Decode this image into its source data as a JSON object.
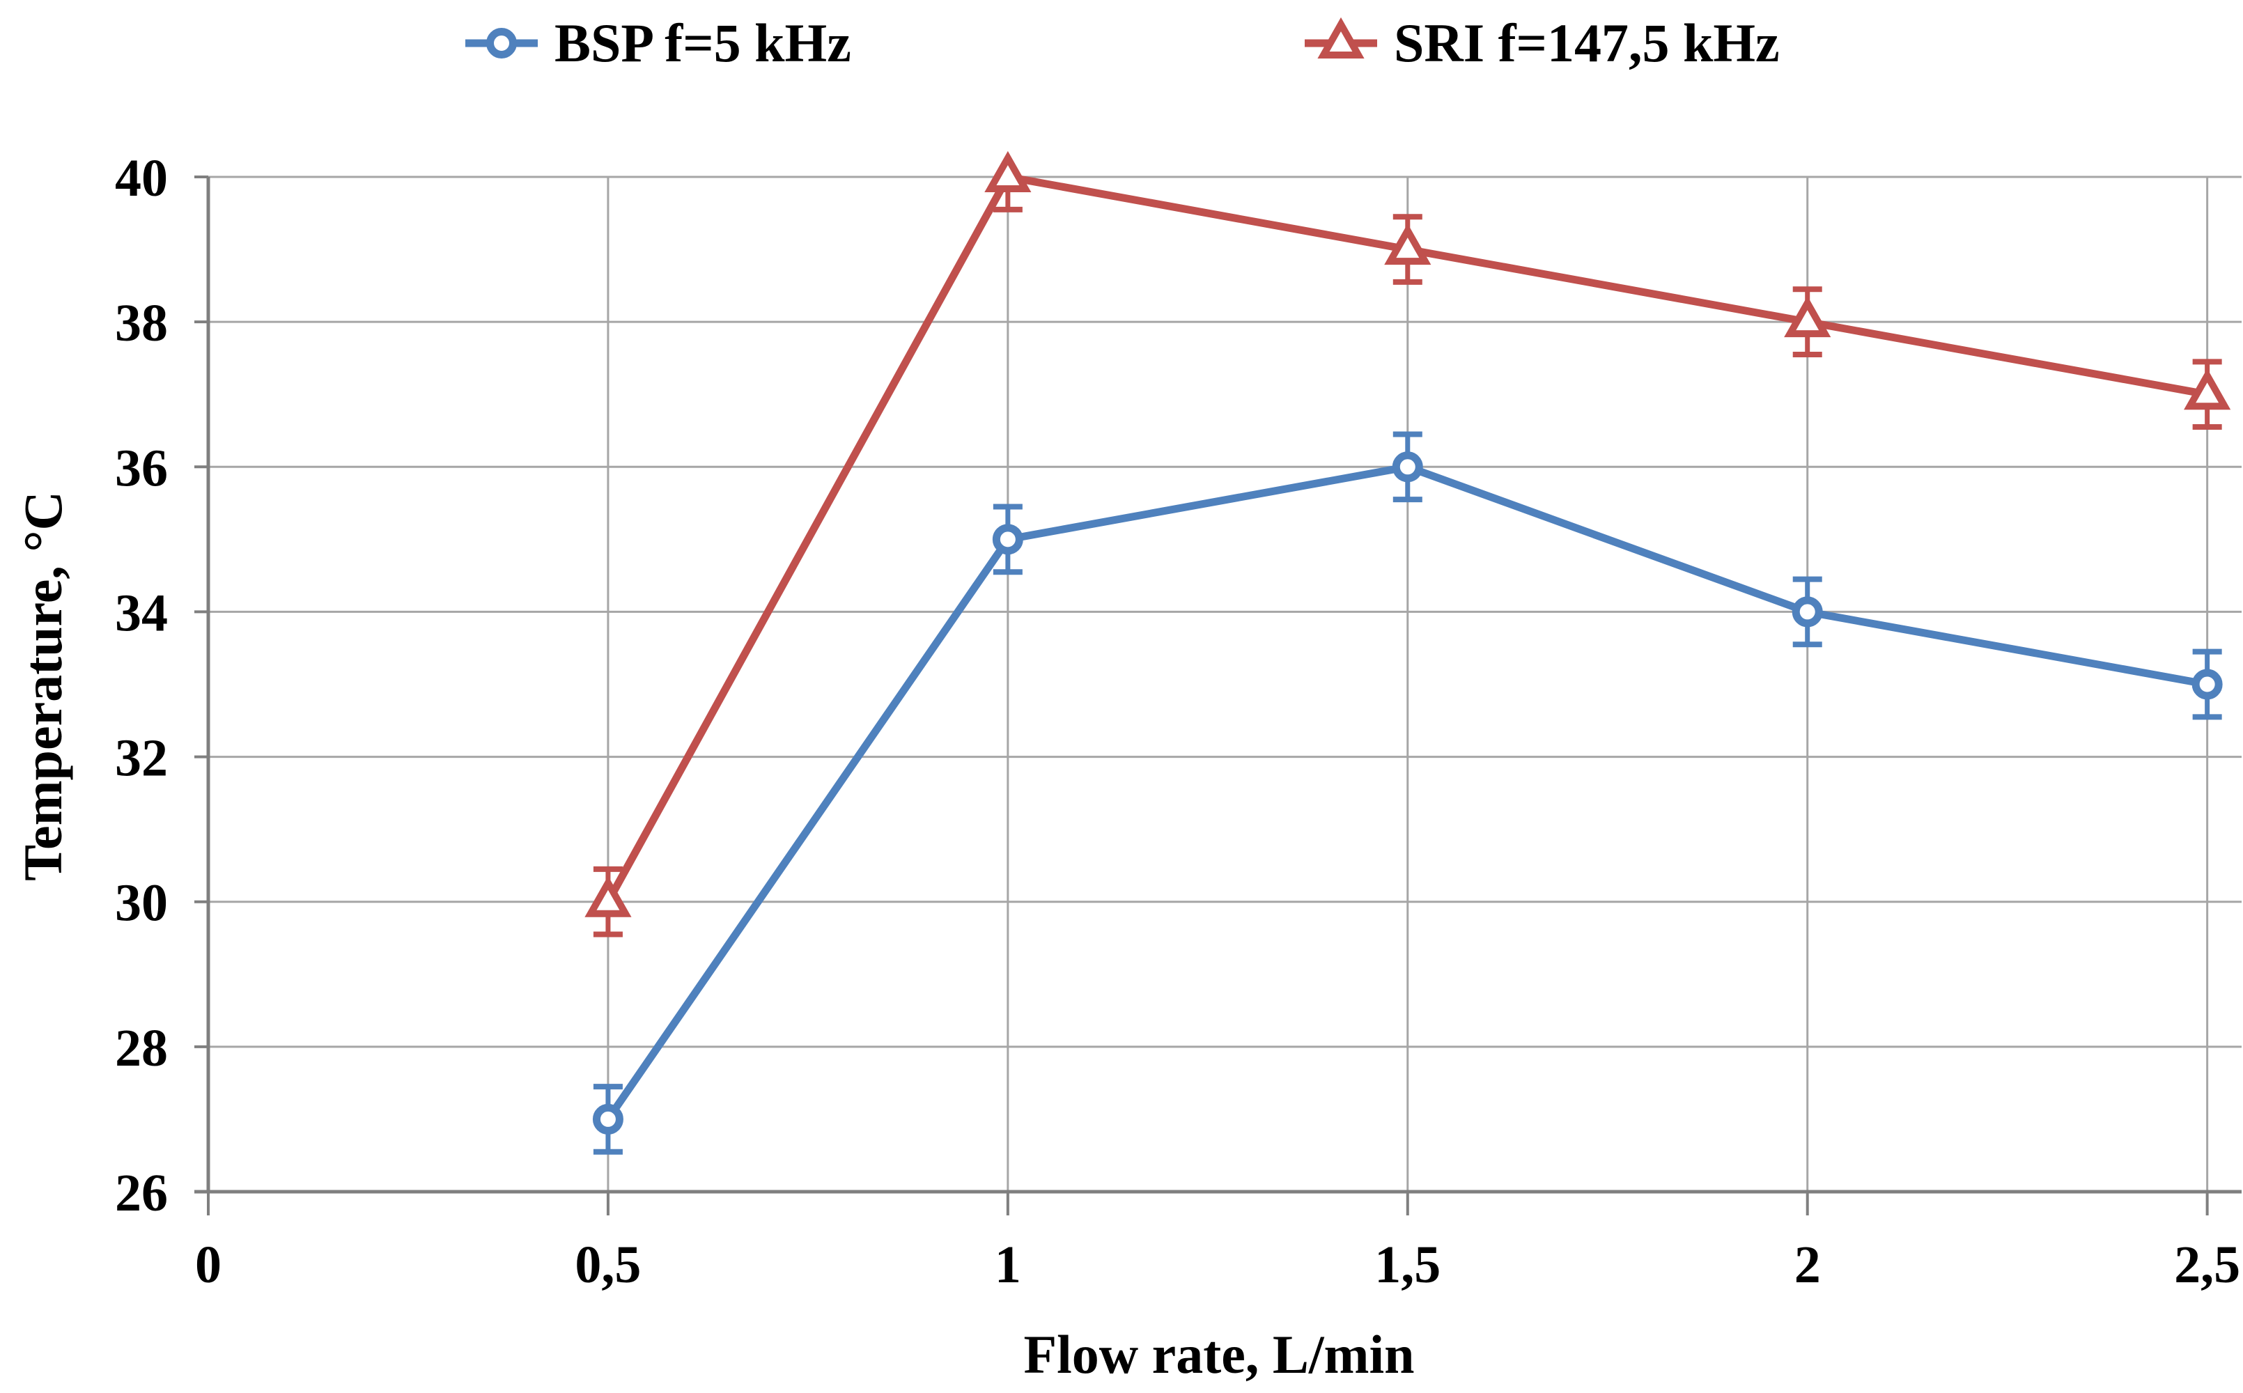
{
  "chart_data": {
    "type": "line",
    "title": "",
    "xlabel": "Flow rate, L/min",
    "ylabel": "Temperature, °C",
    "x": [
      0.5,
      1,
      1.5,
      2,
      2.5
    ],
    "xlim": [
      0,
      2.543
    ],
    "ylim": [
      26,
      40
    ],
    "x_ticks": {
      "values": [
        0,
        0.5,
        1,
        1.5,
        2,
        2.5
      ],
      "labels": [
        "0",
        "0,5",
        "1",
        "1,5",
        "2",
        "2,5"
      ]
    },
    "y_ticks": {
      "values": [
        26,
        28,
        30,
        32,
        34,
        36,
        38,
        40
      ],
      "labels": [
        "26",
        "28",
        "30",
        "32",
        "34",
        "36",
        "38",
        "40"
      ]
    },
    "grid": {
      "horizontal_step": 2,
      "vertical_at": [
        0.5,
        1,
        1.5,
        2,
        2.5
      ],
      "grid_on": true
    },
    "legend_position": "top",
    "series": [
      {
        "name": "BSP f=5 kHz",
        "color": "#4F81BD",
        "marker": "open-circle",
        "values": [
          27,
          35,
          36,
          34,
          33
        ],
        "error": 0.45
      },
      {
        "name": "SRI f=147,5 kHz",
        "color": "#C0504D",
        "marker": "open-triangle",
        "values": [
          30,
          40,
          39,
          38,
          37
        ],
        "error": 0.45
      }
    ],
    "colors": {
      "gridline": "#A6A6A6",
      "axis": "#7F7F7F",
      "text": "#000000",
      "background": "#FFFFFF"
    }
  }
}
